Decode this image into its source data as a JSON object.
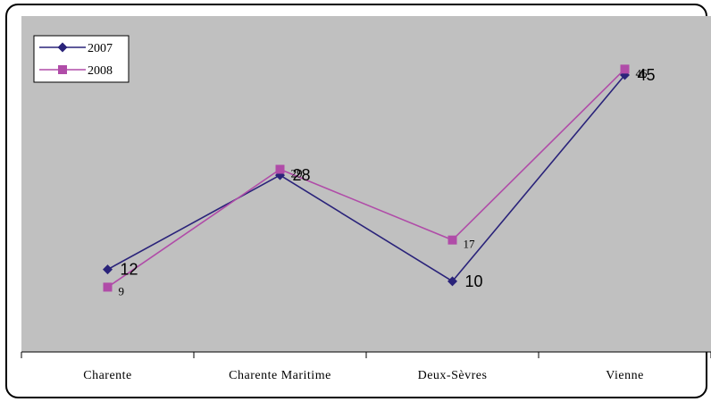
{
  "chart_data": {
    "type": "line",
    "categories": [
      "Charente",
      "Charente Maritime",
      "Deux-Sèvres",
      "Vienne"
    ],
    "series": [
      {
        "name": "2007",
        "values": [
          12,
          28,
          10,
          45
        ],
        "color": "#2a237a",
        "marker": "diamond"
      },
      {
        "name": "2008",
        "values": [
          9,
          29,
          17,
          46
        ],
        "color": "#b04ca8",
        "marker": "square"
      }
    ],
    "ylim": [
      -2,
      55
    ],
    "grid": false,
    "plot_background": "#c0c0c0",
    "legend_position": "top-left",
    "title": "",
    "xlabel": "",
    "ylabel": ""
  }
}
